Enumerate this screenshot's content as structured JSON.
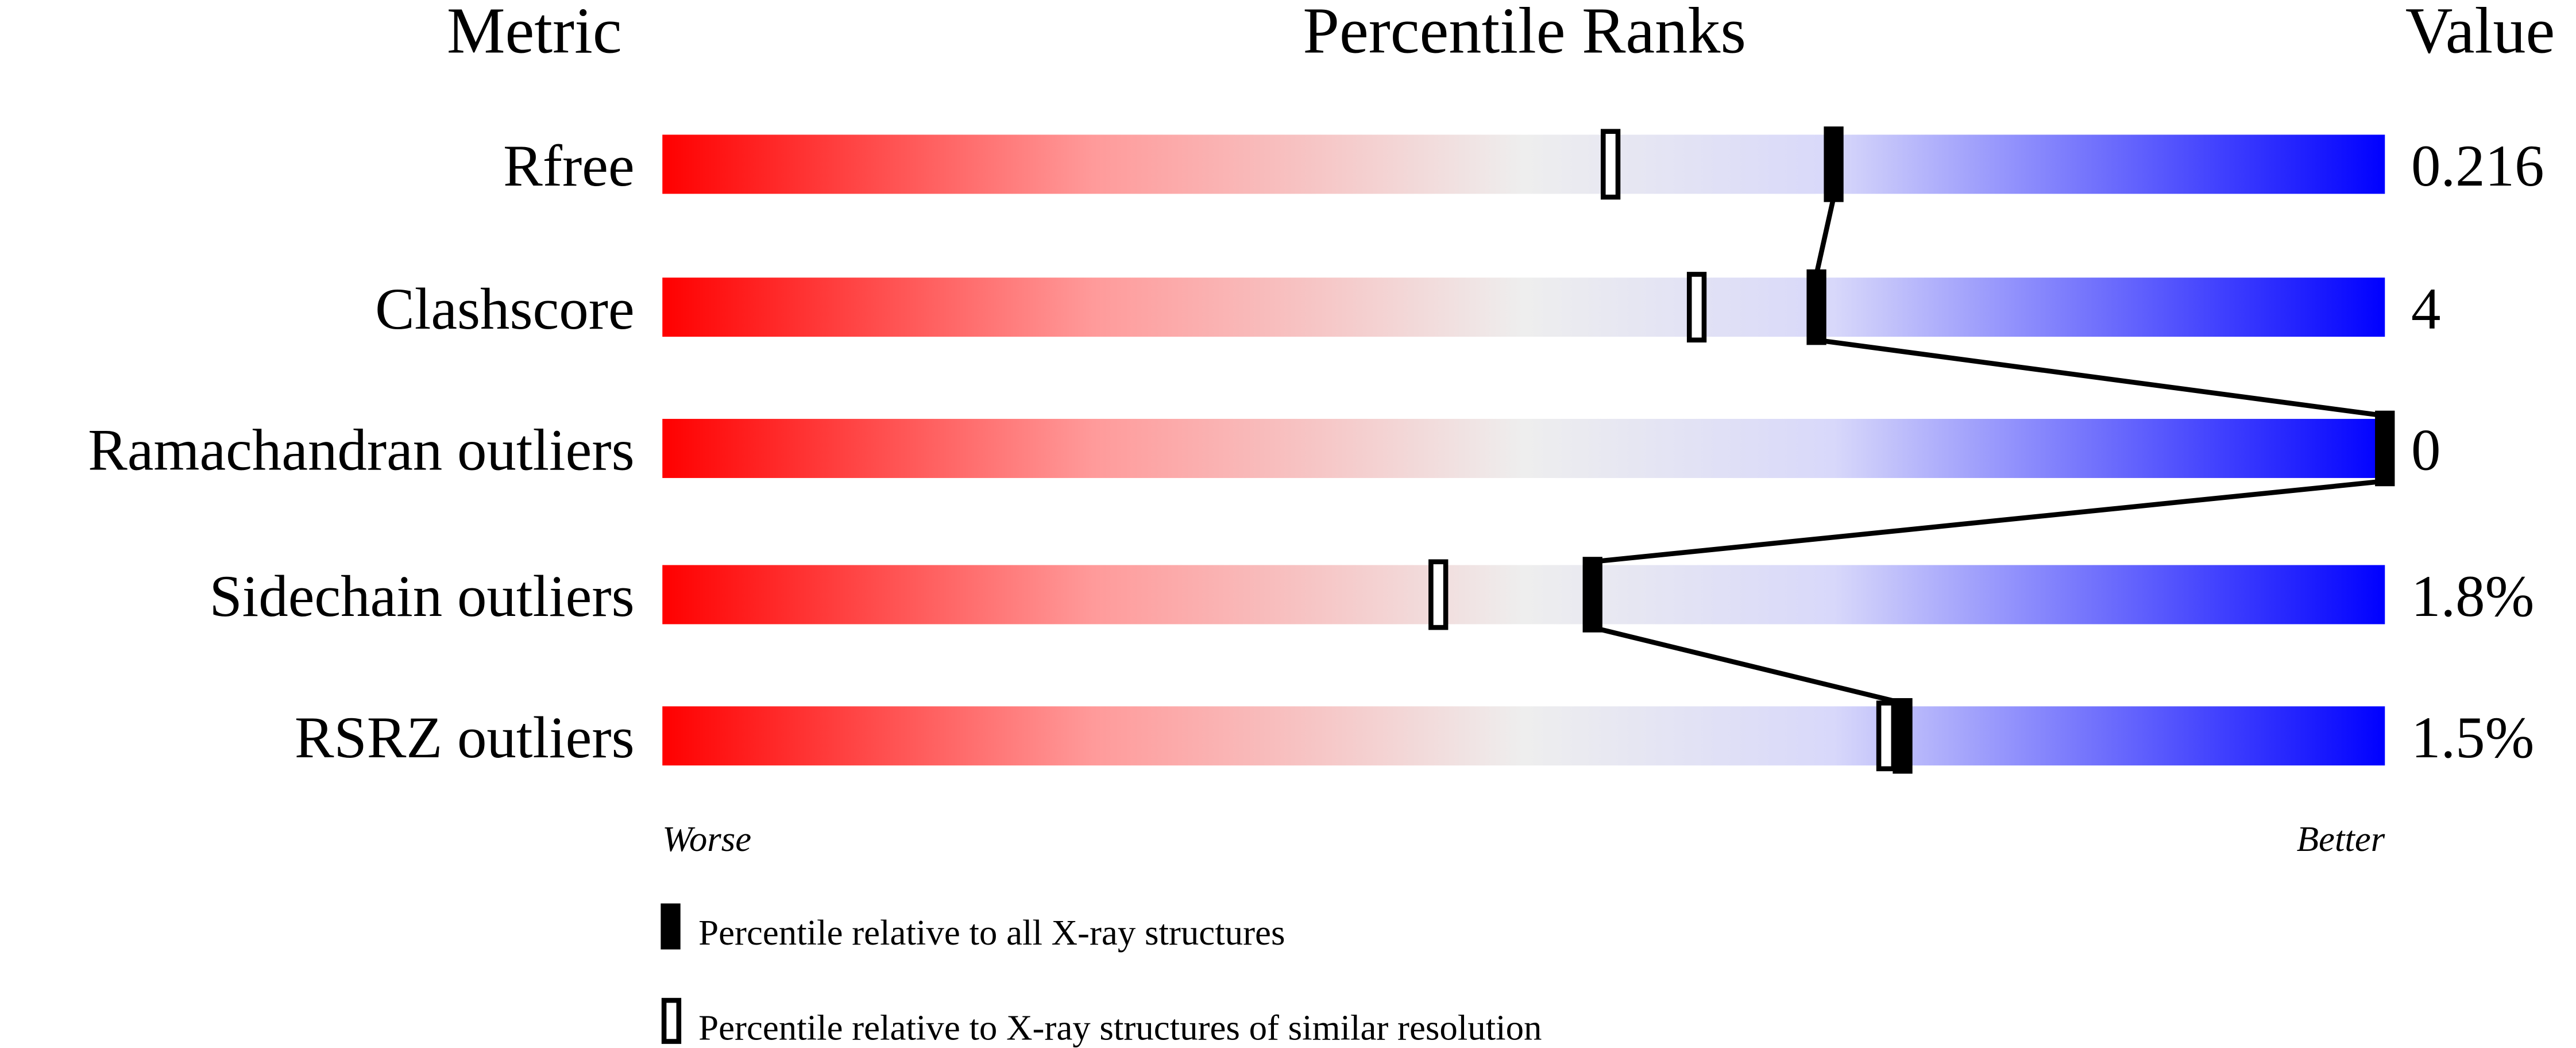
{
  "chart_data": {
    "type": "bar",
    "headers": {
      "metric": "Metric",
      "percentile": "Percentile Ranks",
      "value": "Value"
    },
    "xlim": [
      0,
      100
    ],
    "axis_labels": {
      "left": "Worse",
      "right": "Better"
    },
    "metrics": [
      {
        "name": "Rfree",
        "value": "0.216",
        "percentile_all": 68,
        "percentile_similar": 55
      },
      {
        "name": "Clashscore",
        "value": "4",
        "percentile_all": 67,
        "percentile_similar": 60
      },
      {
        "name": "Ramachandran outliers",
        "value": "0",
        "percentile_all": 100,
        "percentile_similar": 100
      },
      {
        "name": "Sidechain outliers",
        "value": "1.8%",
        "percentile_all": 54,
        "percentile_similar": 45
      },
      {
        "name": "RSRZ outliers",
        "value": "1.5%",
        "percentile_all": 72,
        "percentile_similar": 71
      }
    ],
    "legend": [
      {
        "marker": "filled",
        "label": "Percentile relative to all X-ray structures"
      },
      {
        "marker": "open",
        "label": "Percentile relative to X-ray structures of similar resolution"
      }
    ],
    "colors": {
      "worse": "#ff0000",
      "middle": "#eeeeee",
      "light_blue": "#dcdcfa",
      "better": "#0000ff",
      "marker": "#000000"
    }
  }
}
